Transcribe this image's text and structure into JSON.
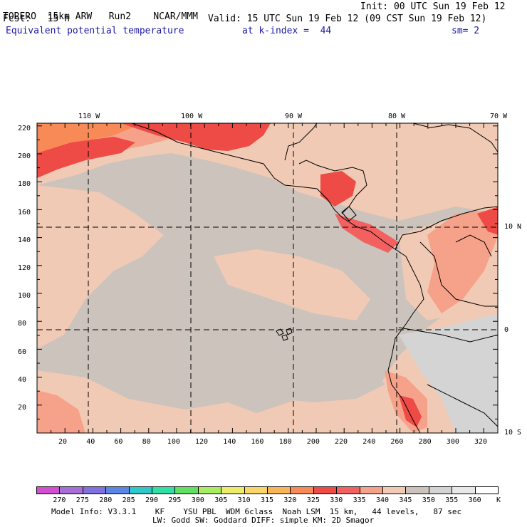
{
  "header": {
    "model": "TORERO",
    "resolution": "15km ARW",
    "run": "Run2",
    "org": "NCAR/MMM",
    "init": "Init: 00 UTC Sun 19 Feb 12",
    "fcst_label": "Fcst:",
    "fcst_value": "15 h",
    "valid": "Valid: 15 UTC Sun 19 Feb 12 (09 CST Sun 19 Feb 12)",
    "field": "Equivalent potential temperature",
    "level": "at k-index =  44",
    "smoothing": "sm= 2"
  },
  "map": {
    "lon_labels": [
      "110 W",
      "100 W",
      "90 W",
      "80 W",
      "70 W"
    ],
    "lat_labels": [
      "10 N",
      "0",
      "10 S"
    ],
    "y_ticks": [
      "220",
      "200",
      "180",
      "160",
      "140",
      "120",
      "100",
      "80",
      "60",
      "40",
      "20"
    ],
    "x_ticks": [
      "20",
      "40",
      "60",
      "80",
      "100",
      "120",
      "140",
      "160",
      "180",
      "200",
      "220",
      "240",
      "260",
      "280",
      "300",
      "320"
    ]
  },
  "colorbar": {
    "unit": "K",
    "labels": [
      "270",
      "275",
      "280",
      "285",
      "290",
      "295",
      "300",
      "305",
      "310",
      "315",
      "320",
      "325",
      "330",
      "335",
      "340",
      "345",
      "350",
      "355",
      "360"
    ],
    "colors": [
      "#d24fd2",
      "#a66fd8",
      "#8070e0",
      "#5b86e6",
      "#2ec8c8",
      "#2ee0a4",
      "#60e060",
      "#a8ec60",
      "#ecec6a",
      "#f8d66a",
      "#f8b458",
      "#f88a58",
      "#ee4a46",
      "#f26060",
      "#f6a28a",
      "#f0cab4",
      "#cbc3bc",
      "#d4d4d4",
      "#e8e8e8",
      "#ffffff"
    ]
  },
  "footer": {
    "line1": "Model Info: V3.3.1    KF    YSU PBL  WDM 6class  Noah LSM  15 km,   44 levels,   87 sec",
    "line2": "LW: Godd SW: Goddard DIFF: simple KM: 2D Smagor"
  }
}
